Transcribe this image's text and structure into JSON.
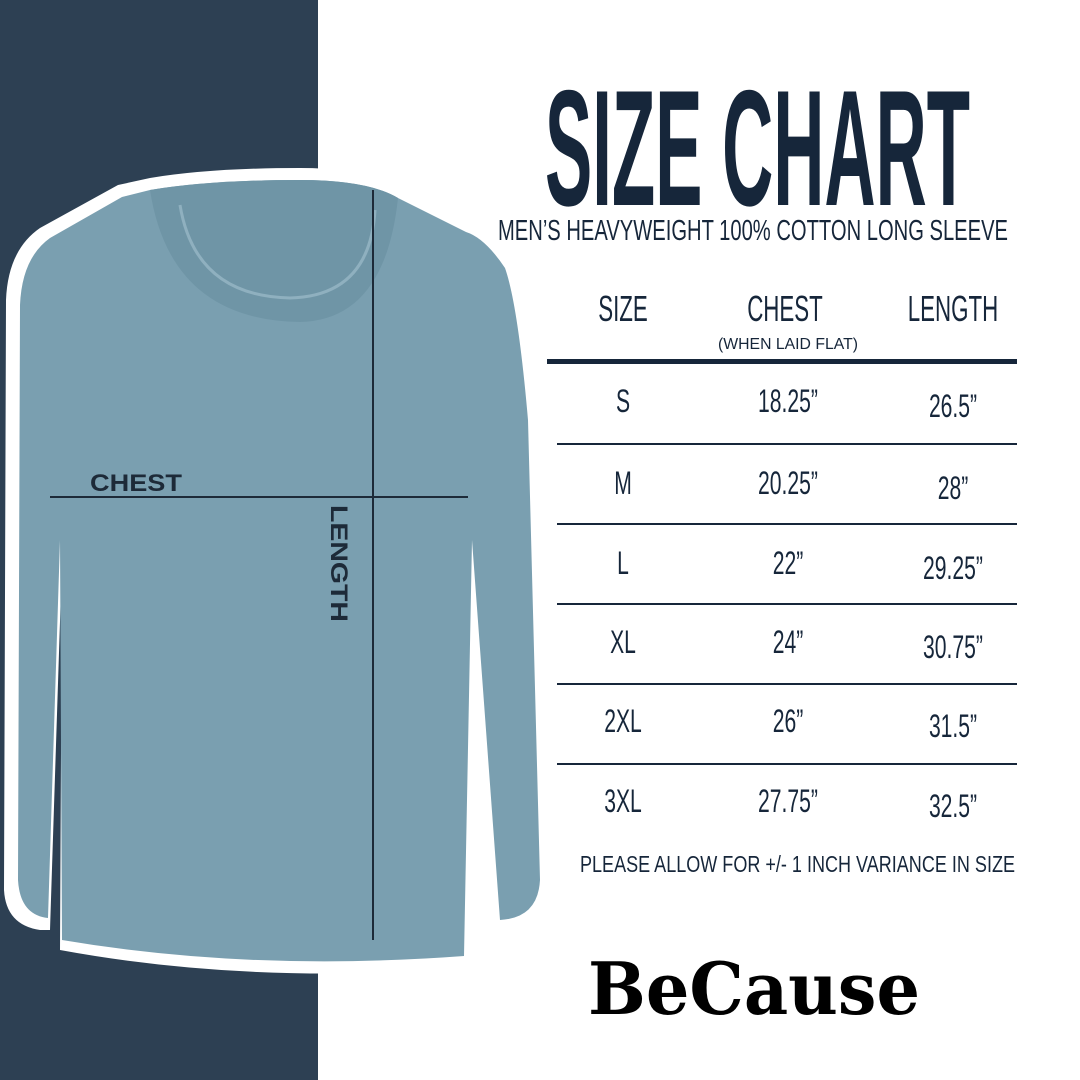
{
  "title": "SIZE CHART",
  "subtitle": "MEN’S HEAVYWEIGHT 100% COTTON LONG SLEEVE",
  "colors": {
    "navy_band": "#2d4053",
    "shirt": "#7a9fb0",
    "text": "#16263a"
  },
  "shirt_labels": {
    "chest": "CHEST",
    "length": "LENGTH"
  },
  "table": {
    "headers": {
      "size": "SIZE",
      "chest": "CHEST",
      "chest_note": "(WHEN LAID FLAT)",
      "length": "LENGTH"
    },
    "rows": [
      {
        "size": "S",
        "chest": "18.25”",
        "length": "26.5”"
      },
      {
        "size": "M",
        "chest": "20.25”",
        "length": "28”"
      },
      {
        "size": "L",
        "chest": "22”",
        "length": "29.25”"
      },
      {
        "size": "XL",
        "chest": "24”",
        "length": "30.75”"
      },
      {
        "size": "2XL",
        "chest": "26”",
        "length": "31.5”"
      },
      {
        "size": "3XL",
        "chest": "27.75”",
        "length": "32.5”"
      }
    ]
  },
  "note": "PLEASE ALLOW FOR +/- 1 INCH VARIANCE IN SIZE",
  "logo": "BeCause"
}
